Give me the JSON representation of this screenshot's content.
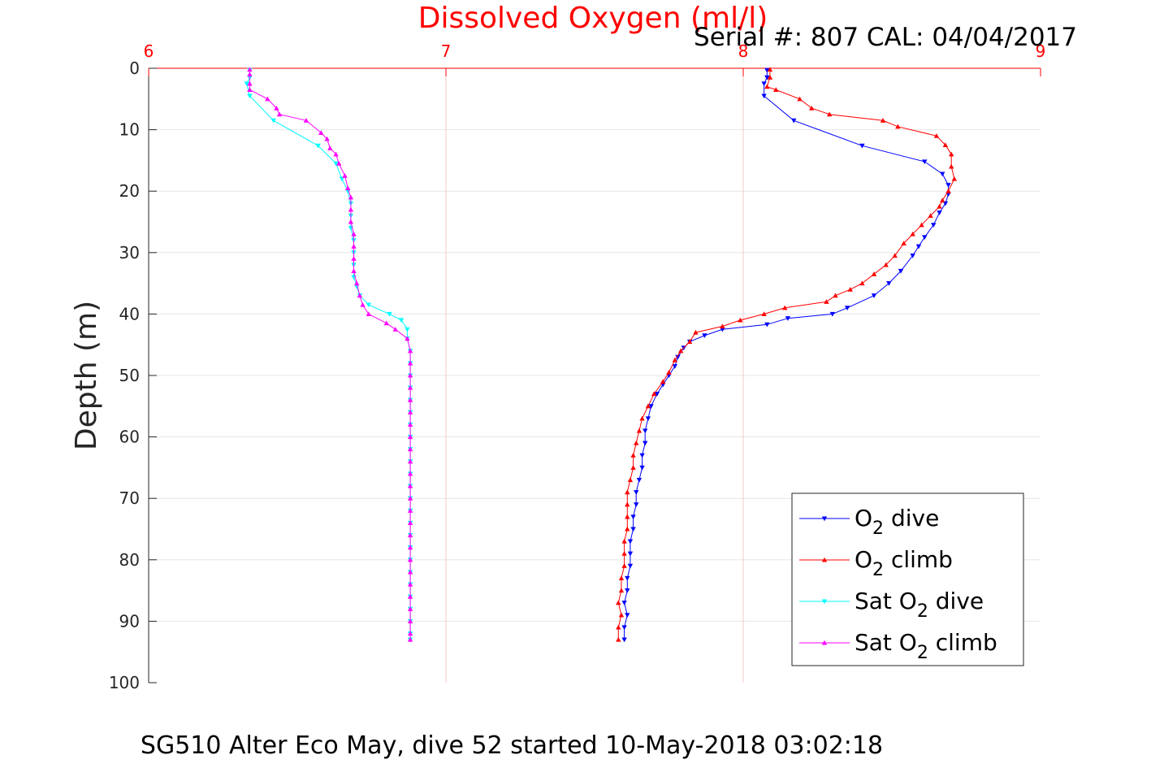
{
  "chart_data": {
    "type": "line",
    "title": "Dissolved Oxygen (ml/l)",
    "subtitle": "Serial #: 807  CAL: 04/04/2017",
    "ylabel": "Depth (m)",
    "footer": "SG510 Alter Eco May, dive 52 started 10-May-2018 03:02:18",
    "xlim": [
      6,
      9
    ],
    "ylim": [
      0,
      100
    ],
    "y_reversed": true,
    "x_ticks": [
      6,
      7,
      8,
      9
    ],
    "y_ticks": [
      0,
      10,
      20,
      30,
      40,
      50,
      60,
      70,
      80,
      90,
      100
    ],
    "grid": true,
    "legend_position": "bottom-right",
    "colors": {
      "title": "#ff0000",
      "x_tick": "#ff0000",
      "grid": "#e6e6e6",
      "x_grid": "#f5c8c8"
    },
    "series": [
      {
        "name": "O2 dive",
        "legend_main": "O",
        "legend_sub": "2",
        "legend_post": " dive",
        "color": "#0000ff",
        "marker": "down",
        "points": [
          [
            8.08,
            0.3
          ],
          [
            8.08,
            1.5
          ],
          [
            8.07,
            2.5
          ],
          [
            8.07,
            4.5
          ],
          [
            8.17,
            8.5
          ],
          [
            8.4,
            12.6
          ],
          [
            8.61,
            15.2
          ],
          [
            8.67,
            17.2
          ],
          [
            8.69,
            19.0
          ],
          [
            8.69,
            20.5
          ],
          [
            8.68,
            22.0
          ],
          [
            8.66,
            23.5
          ],
          [
            8.64,
            25.5
          ],
          [
            8.61,
            27.5
          ],
          [
            8.59,
            29.0
          ],
          [
            8.57,
            30.5
          ],
          [
            8.53,
            33.0
          ],
          [
            8.49,
            35.0
          ],
          [
            8.44,
            37.0
          ],
          [
            8.35,
            39.0
          ],
          [
            8.3,
            40.0
          ],
          [
            8.15,
            40.7
          ],
          [
            8.08,
            41.7
          ],
          [
            7.93,
            42.5
          ],
          [
            7.87,
            43.5
          ],
          [
            7.82,
            44.5
          ],
          [
            7.8,
            45.5
          ],
          [
            7.78,
            47.0
          ],
          [
            7.77,
            48.5
          ],
          [
            7.75,
            50.0
          ],
          [
            7.73,
            51.5
          ],
          [
            7.71,
            53.0
          ],
          [
            7.69,
            55.0
          ],
          [
            7.68,
            57.0
          ],
          [
            7.67,
            59.0
          ],
          [
            7.67,
            61.0
          ],
          [
            7.66,
            63.0
          ],
          [
            7.66,
            65.0
          ],
          [
            7.65,
            67.0
          ],
          [
            7.64,
            69.0
          ],
          [
            7.64,
            71.0
          ],
          [
            7.63,
            73.0
          ],
          [
            7.63,
            75.0
          ],
          [
            7.62,
            77.0
          ],
          [
            7.62,
            79.0
          ],
          [
            7.62,
            81.0
          ],
          [
            7.61,
            83.0
          ],
          [
            7.61,
            85.0
          ],
          [
            7.6,
            87.0
          ],
          [
            7.61,
            89.0
          ],
          [
            7.6,
            91.0
          ],
          [
            7.6,
            93.0
          ]
        ]
      },
      {
        "name": "O2 climb",
        "legend_main": "O",
        "legend_sub": "2",
        "legend_post": " climb",
        "color": "#ff0000",
        "marker": "up",
        "points": [
          [
            8.09,
            0.2
          ],
          [
            8.09,
            1.5
          ],
          [
            8.08,
            3.0
          ],
          [
            8.11,
            3.5
          ],
          [
            8.19,
            5.0
          ],
          [
            8.23,
            6.5
          ],
          [
            8.29,
            7.5
          ],
          [
            8.47,
            8.5
          ],
          [
            8.52,
            9.5
          ],
          [
            8.65,
            11.0
          ],
          [
            8.68,
            12.5
          ],
          [
            8.7,
            14.0
          ],
          [
            8.7,
            16.0
          ],
          [
            8.71,
            18.0
          ],
          [
            8.69,
            20.0
          ],
          [
            8.67,
            21.5
          ],
          [
            8.66,
            22.5
          ],
          [
            8.63,
            24.0
          ],
          [
            8.6,
            25.5
          ],
          [
            8.57,
            27.0
          ],
          [
            8.54,
            28.5
          ],
          [
            8.51,
            30.5
          ],
          [
            8.48,
            32.0
          ],
          [
            8.44,
            33.5
          ],
          [
            8.4,
            35.0
          ],
          [
            8.36,
            36.0
          ],
          [
            8.31,
            37.0
          ],
          [
            8.28,
            38.0
          ],
          [
            8.14,
            39.0
          ],
          [
            8.07,
            40.0
          ],
          [
            7.99,
            41.0
          ],
          [
            7.93,
            42.0
          ],
          [
            7.84,
            43.0
          ],
          [
            7.82,
            44.5
          ],
          [
            7.79,
            46.0
          ],
          [
            7.77,
            47.5
          ],
          [
            7.75,
            49.5
          ],
          [
            7.73,
            51.0
          ],
          [
            7.7,
            53.0
          ],
          [
            7.68,
            55.0
          ],
          [
            7.66,
            57.0
          ],
          [
            7.65,
            59.0
          ],
          [
            7.64,
            61.0
          ],
          [
            7.63,
            63.0
          ],
          [
            7.63,
            65.0
          ],
          [
            7.62,
            67.0
          ],
          [
            7.61,
            69.0
          ],
          [
            7.61,
            71.0
          ],
          [
            7.61,
            73.0
          ],
          [
            7.61,
            75.0
          ],
          [
            7.6,
            77.0
          ],
          [
            7.6,
            79.0
          ],
          [
            7.6,
            81.0
          ],
          [
            7.59,
            83.0
          ],
          [
            7.59,
            85.0
          ],
          [
            7.58,
            87.0
          ],
          [
            7.59,
            89.0
          ],
          [
            7.58,
            91.0
          ],
          [
            7.58,
            93.0
          ]
        ]
      },
      {
        "name": "Sat O2 dive",
        "legend_main": "Sat O",
        "legend_sub": "2",
        "legend_post": " dive",
        "color": "#00ffff",
        "marker": "down",
        "points": [
          [
            6.34,
            0.3
          ],
          [
            6.34,
            1.5
          ],
          [
            6.33,
            2.5
          ],
          [
            6.34,
            4.5
          ],
          [
            6.42,
            8.5
          ],
          [
            6.57,
            12.6
          ],
          [
            6.63,
            15.5
          ],
          [
            6.65,
            18.0
          ],
          [
            6.67,
            20.0
          ],
          [
            6.68,
            22.0
          ],
          [
            6.68,
            24.0
          ],
          [
            6.68,
            26.0
          ],
          [
            6.69,
            28.0
          ],
          [
            6.69,
            30.0
          ],
          [
            6.69,
            32.0
          ],
          [
            6.69,
            34.0
          ],
          [
            6.7,
            35.5
          ],
          [
            6.71,
            37.0
          ],
          [
            6.74,
            38.5
          ],
          [
            6.81,
            40.0
          ],
          [
            6.85,
            41.0
          ],
          [
            6.87,
            42.5
          ],
          [
            6.87,
            44.0
          ],
          [
            6.88,
            46.0
          ],
          [
            6.88,
            48.0
          ],
          [
            6.88,
            50.0
          ],
          [
            6.88,
            52.0
          ],
          [
            6.88,
            54.0
          ],
          [
            6.88,
            56.0
          ],
          [
            6.88,
            58.0
          ],
          [
            6.88,
            60.0
          ],
          [
            6.88,
            62.0
          ],
          [
            6.88,
            64.0
          ],
          [
            6.88,
            66.0
          ],
          [
            6.88,
            68.0
          ],
          [
            6.88,
            70.0
          ],
          [
            6.88,
            72.0
          ],
          [
            6.88,
            74.0
          ],
          [
            6.88,
            76.0
          ],
          [
            6.88,
            78.0
          ],
          [
            6.88,
            80.0
          ],
          [
            6.88,
            82.0
          ],
          [
            6.88,
            84.0
          ],
          [
            6.88,
            86.0
          ],
          [
            6.88,
            88.0
          ],
          [
            6.88,
            90.0
          ],
          [
            6.88,
            92.0
          ],
          [
            6.88,
            93.0
          ]
        ]
      },
      {
        "name": "Sat O2 climb",
        "legend_main": "Sat O",
        "legend_sub": "2",
        "legend_post": " climb",
        "color": "#ff00ff",
        "marker": "up",
        "points": [
          [
            6.34,
            0.2
          ],
          [
            6.34,
            1.0
          ],
          [
            6.34,
            2.5
          ],
          [
            6.34,
            3.5
          ],
          [
            6.4,
            5.0
          ],
          [
            6.43,
            6.5
          ],
          [
            6.44,
            7.5
          ],
          [
            6.53,
            8.5
          ],
          [
            6.58,
            10.5
          ],
          [
            6.6,
            11.5
          ],
          [
            6.61,
            13.0
          ],
          [
            6.63,
            14.0
          ],
          [
            6.64,
            15.5
          ],
          [
            6.66,
            17.5
          ],
          [
            6.67,
            19.5
          ],
          [
            6.68,
            21.0
          ],
          [
            6.68,
            23.0
          ],
          [
            6.68,
            25.0
          ],
          [
            6.69,
            27.0
          ],
          [
            6.69,
            29.0
          ],
          [
            6.69,
            31.0
          ],
          [
            6.69,
            33.0
          ],
          [
            6.7,
            35.0
          ],
          [
            6.71,
            37.0
          ],
          [
            6.72,
            38.5
          ],
          [
            6.74,
            40.0
          ],
          [
            6.8,
            41.5
          ],
          [
            6.83,
            42.5
          ],
          [
            6.87,
            44.0
          ],
          [
            6.88,
            46.0
          ],
          [
            6.88,
            48.0
          ],
          [
            6.88,
            50.0
          ],
          [
            6.88,
            52.0
          ],
          [
            6.88,
            54.0
          ],
          [
            6.88,
            56.0
          ],
          [
            6.88,
            58.0
          ],
          [
            6.88,
            60.0
          ],
          [
            6.88,
            62.0
          ],
          [
            6.88,
            64.0
          ],
          [
            6.88,
            66.0
          ],
          [
            6.88,
            68.0
          ],
          [
            6.88,
            70.0
          ],
          [
            6.88,
            72.0
          ],
          [
            6.88,
            74.0
          ],
          [
            6.88,
            76.0
          ],
          [
            6.88,
            78.0
          ],
          [
            6.88,
            80.0
          ],
          [
            6.88,
            82.0
          ],
          [
            6.88,
            84.0
          ],
          [
            6.88,
            86.0
          ],
          [
            6.88,
            88.0
          ],
          [
            6.88,
            90.0
          ],
          [
            6.88,
            92.0
          ],
          [
            6.88,
            93.0
          ]
        ]
      }
    ]
  }
}
